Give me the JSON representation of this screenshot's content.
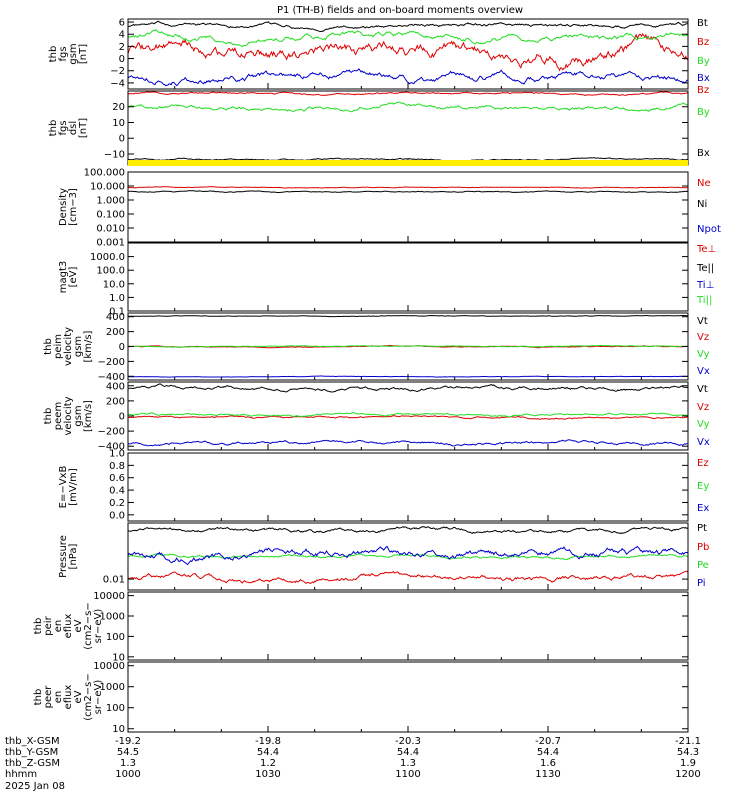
{
  "title": "P1 (TH-B) fields and on-board moments overview",
  "colors": {
    "black": "#000000",
    "red": "#dd0000",
    "green": "#22dd22",
    "blue": "#0000cc",
    "yellow": "#ffee00"
  },
  "chart_data": {
    "type": "line",
    "title": "P1 (TH-B) fields and on-board moments overview",
    "x_axis": {
      "hhmm": [
        "1000",
        "1030",
        "1100",
        "1130",
        "1200"
      ],
      "x_range_hours": [
        10.0,
        12.0
      ],
      "tick_labels": {
        "thb_X-GSM": [
          "-19.2",
          "-19.8",
          "-20.3",
          "-20.7",
          "-21.1"
        ],
        "thb_Y-GSM": [
          "54.5",
          "54.4",
          "54.4",
          "54.4",
          "54.3"
        ],
        "thb_Z-GSM": [
          "1.3",
          "1.2",
          "1.3",
          "1.6",
          "1.9"
        ],
        "hhmm": [
          "1000",
          "1030",
          "1100",
          "1130",
          "1200"
        ]
      },
      "row_labels": [
        "thb_X-GSM",
        "thb_Y-GSM",
        "thb_Z-GSM",
        "hhmm"
      ],
      "date": "2025 Jan 08"
    },
    "panels": [
      {
        "id": "fgs",
        "ylabel": [
          "thb",
          "fgs",
          "gsm",
          "[nT]"
        ],
        "ylim": [
          -5,
          6.5
        ],
        "yticks": [
          -4,
          -2,
          0,
          2,
          4,
          6
        ],
        "ytick_labels": [
          "−4",
          "−2",
          "0",
          "2",
          "4",
          "6"
        ],
        "series": [
          {
            "name": "Bt",
            "color": "black",
            "mean": 5.4,
            "amp": 0.3
          },
          {
            "name": "Bz",
            "color": "red",
            "mean": 0.8,
            "amp": 1.1
          },
          {
            "name": "By",
            "color": "green",
            "mean": 3.6,
            "amp": 0.5
          },
          {
            "name": "Bx",
            "color": "blue",
            "mean": -3.0,
            "amp": 0.6
          }
        ]
      },
      {
        "id": "fgs_dsl",
        "ylabel": [
          "thb",
          "fgs",
          "dsl",
          "[nT]"
        ],
        "ylim": [
          -17,
          30
        ],
        "yticks": [
          -10,
          0,
          10,
          20
        ],
        "ytick_labels": [
          "−10",
          "0",
          "10",
          "20"
        ],
        "series": [
          {
            "name": "Bz",
            "color": "red",
            "mean": 28.5,
            "amp": 0.6
          },
          {
            "name": "By",
            "color": "green",
            "mean": 19.5,
            "amp": 1.3
          },
          {
            "name": "Bx",
            "color": "black",
            "mean": -13.5,
            "amp": 0.5
          }
        ]
      },
      {
        "id": "density",
        "ylabel": [
          "Density",
          "[cm−3]"
        ],
        "log": true,
        "ylim": [
          0.001,
          100
        ],
        "yticks": [
          0.001,
          0.01,
          0.1,
          1,
          10,
          100
        ],
        "ytick_labels": [
          "0.001",
          "0.010",
          "0.100",
          "1.000",
          "10.000",
          "100.000"
        ],
        "series": [
          {
            "name": "Ne",
            "color": "red",
            "mean": 8.0,
            "amp": 0.04
          },
          {
            "name": "Ni",
            "color": "black",
            "mean": 4.0,
            "amp": 0.06
          },
          {
            "name": "Npot",
            "color": "blue",
            "mean": null,
            "amp": 0
          }
        ]
      },
      {
        "id": "temp",
        "ylabel": [
          "magt3",
          "[eV]"
        ],
        "log": true,
        "ylim": [
          0.1,
          10000
        ],
        "yticks": [
          0.1,
          1,
          10,
          100,
          1000
        ],
        "ytick_labels": [
          "0.1",
          "1.0",
          "10.0",
          "100.0",
          "1000.0"
        ],
        "series": [
          {
            "name": "Te⊥",
            "color": "red",
            "mean": null,
            "amp": 0
          },
          {
            "name": "Te||",
            "color": "black",
            "mean": null,
            "amp": 0
          },
          {
            "name": "Ti⊥",
            "color": "blue",
            "mean": null,
            "amp": 0
          },
          {
            "name": "Ti||",
            "color": "green",
            "mean": null,
            "amp": 0
          }
        ]
      },
      {
        "id": "peim",
        "ylabel": [
          "thb",
          "peim",
          "velocity",
          "gsm",
          "[km/s]"
        ],
        "ylim": [
          -450,
          450
        ],
        "yticks": [
          -400,
          -200,
          0,
          200,
          400
        ],
        "ytick_labels": [
          "−400",
          "−200",
          "0",
          "200",
          "400"
        ],
        "series": [
          {
            "name": "Vt",
            "color": "black",
            "mean": 410,
            "amp": 4
          },
          {
            "name": "Vz",
            "color": "red",
            "mean": -2,
            "amp": 6
          },
          {
            "name": "Vy",
            "color": "green",
            "mean": 3,
            "amp": 5
          },
          {
            "name": "Vx",
            "color": "blue",
            "mean": -405,
            "amp": 3
          }
        ]
      },
      {
        "id": "peem",
        "ylabel": [
          "thb",
          "peem",
          "velocity",
          "gsm",
          "[km/s]"
        ],
        "ylim": [
          -450,
          450
        ],
        "yticks": [
          -400,
          -200,
          0,
          200,
          400
        ],
        "ytick_labels": [
          "−400",
          "−200",
          "0",
          "200",
          "400"
        ],
        "series": [
          {
            "name": "Vt",
            "color": "black",
            "mean": 370,
            "amp": 22
          },
          {
            "name": "Vz",
            "color": "red",
            "mean": -20,
            "amp": 12
          },
          {
            "name": "Vy",
            "color": "green",
            "mean": 20,
            "amp": 14
          },
          {
            "name": "Vx",
            "color": "blue",
            "mean": -355,
            "amp": 20
          }
        ]
      },
      {
        "id": "efield",
        "ylabel": [
          "E=−VxB",
          "[mV/m]"
        ],
        "ylim": [
          -0.1,
          1.0
        ],
        "yticks": [
          0.0,
          0.2,
          0.4,
          0.6,
          0.8,
          1.0
        ],
        "ytick_labels": [
          "0.0",
          "0.2",
          "0.4",
          "0.6",
          "0.8",
          "1.0"
        ],
        "series": [
          {
            "name": "Ez",
            "color": "red",
            "mean": null,
            "amp": 0
          },
          {
            "name": "Ey",
            "color": "green",
            "mean": null,
            "amp": 0
          },
          {
            "name": "Ex",
            "color": "blue",
            "mean": null,
            "amp": 0
          }
        ]
      },
      {
        "id": "pressure",
        "ylabel": [
          "Pressure",
          "[nPa]"
        ],
        "log": true,
        "ylim": [
          0.005,
          0.35
        ],
        "yticks": [
          0.01
        ],
        "ytick_labels": [
          "0.01"
        ],
        "series": [
          {
            "name": "Pt",
            "color": "black",
            "mean": 0.22,
            "amp": 0.08
          },
          {
            "name": "Pb",
            "color": "red",
            "mean": 0.011,
            "amp": 0.12
          },
          {
            "name": "Pe",
            "color": "green",
            "mean": 0.042,
            "amp": 0.06
          },
          {
            "name": "Pi",
            "color": "blue",
            "mean": 0.05,
            "amp": 0.18
          }
        ]
      },
      {
        "id": "peir",
        "ylabel": [
          "thb",
          "peir",
          "en",
          "eflux",
          "eV",
          "(cm2−s−",
          "sr−eV)"
        ],
        "log": true,
        "ylim": [
          7,
          15000
        ],
        "yticks": [
          10,
          100,
          1000,
          10000
        ],
        "ytick_labels": [
          "10",
          "100",
          "1000",
          "10000"
        ],
        "series": []
      },
      {
        "id": "peer",
        "ylabel": [
          "thb",
          "peer",
          "en",
          "eflux",
          "eV",
          "(cm2−s−",
          "sr−eV)"
        ],
        "log": true,
        "ylim": [
          7,
          15000
        ],
        "yticks": [
          10,
          100,
          1000,
          10000
        ],
        "ytick_labels": [
          "10",
          "100",
          "1000",
          "10000"
        ],
        "series": []
      }
    ]
  }
}
